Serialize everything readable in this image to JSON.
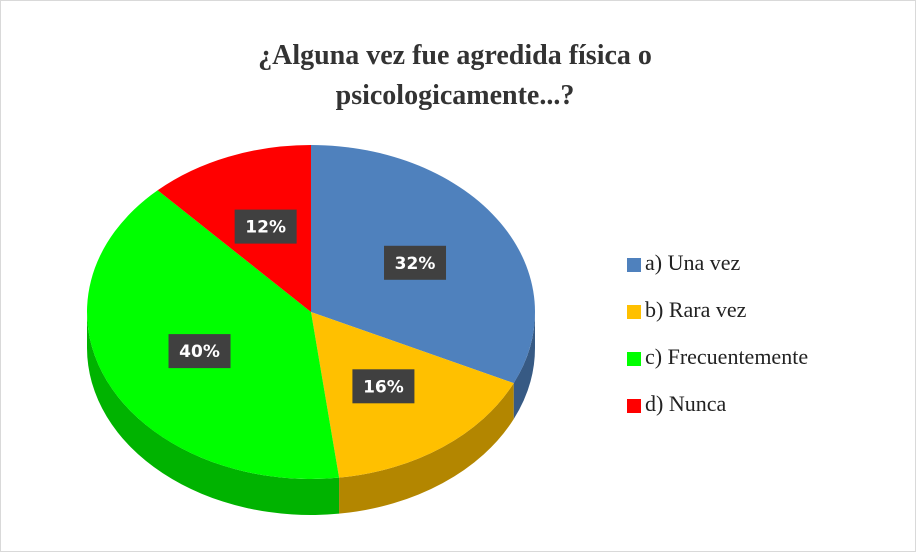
{
  "chart_data": {
    "type": "pie3d",
    "title": "¿Alguna vez fue agredida física o psicologicamente...?",
    "categories": [
      "a) Una vez",
      "b) Rara vez",
      "c) Frecuentemente",
      "d) Nunca"
    ],
    "values": [
      32,
      16,
      40,
      12
    ],
    "value_labels": [
      "32%",
      "16%",
      "40%",
      "12%"
    ],
    "colors": [
      "#4f81bd",
      "#ffc000",
      "#00ff00",
      "#ff0000"
    ],
    "legend": "right"
  }
}
